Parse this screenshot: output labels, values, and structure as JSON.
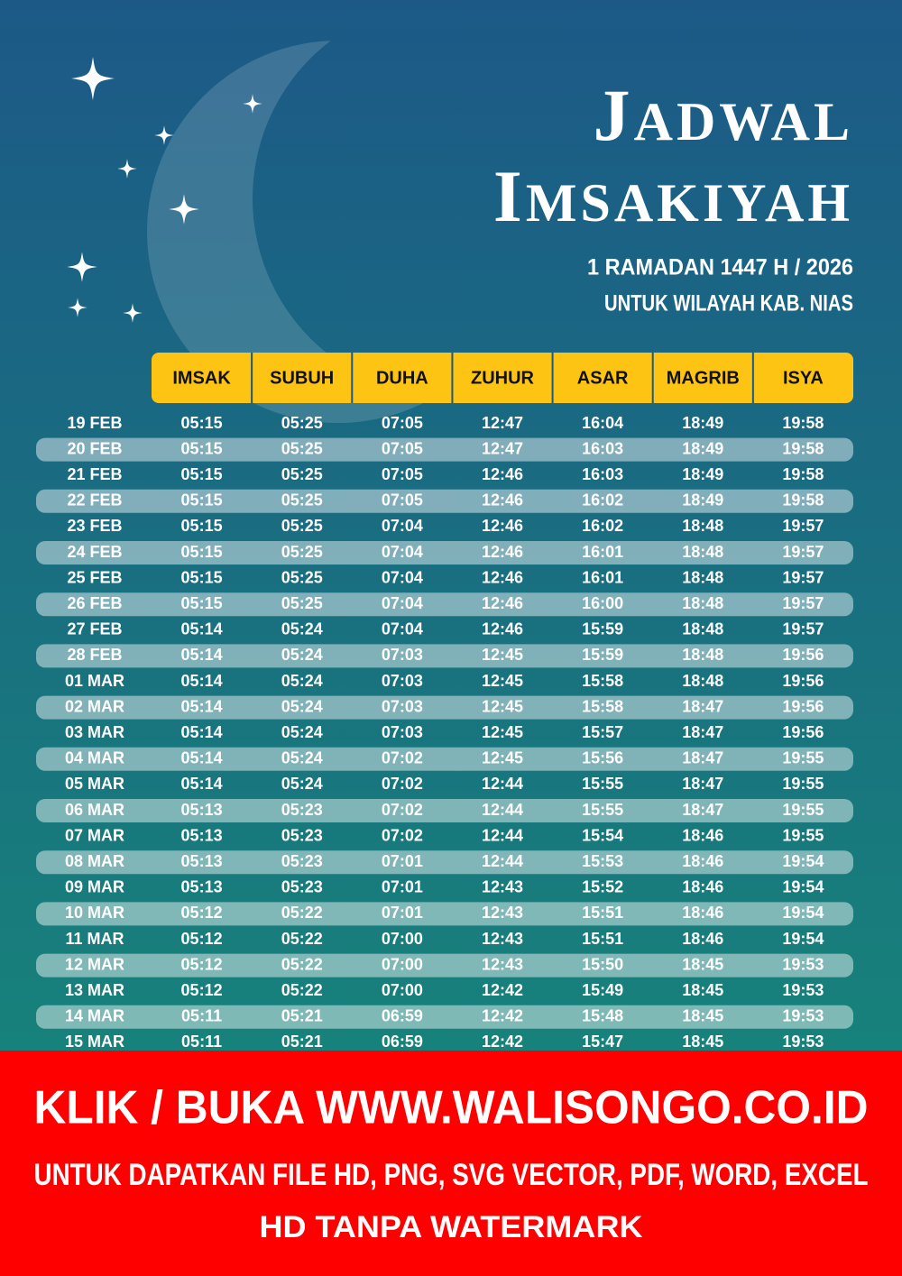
{
  "header": {
    "title_lines": [
      "JADWAL",
      "IMSAKIYAH"
    ],
    "subtitle_lines": [
      "1 RAMADAN 1447 H / 2026",
      "UNTUK WILAYAH KAB. NIAS"
    ]
  },
  "table": {
    "columns": [
      "IMSAK",
      "SUBUH",
      "DUHA",
      "ZUHUR",
      "ASAR",
      "MAGRIB",
      "ISYA"
    ],
    "rows": [
      [
        "19 FEB",
        "05:15",
        "05:25",
        "07:05",
        "12:47",
        "16:04",
        "18:49",
        "19:58"
      ],
      [
        "20 FEB",
        "05:15",
        "05:25",
        "07:05",
        "12:47",
        "16:03",
        "18:49",
        "19:58"
      ],
      [
        "21 FEB",
        "05:15",
        "05:25",
        "07:05",
        "12:46",
        "16:03",
        "18:49",
        "19:58"
      ],
      [
        "22 FEB",
        "05:15",
        "05:25",
        "07:05",
        "12:46",
        "16:02",
        "18:49",
        "19:58"
      ],
      [
        "23 FEB",
        "05:15",
        "05:25",
        "07:04",
        "12:46",
        "16:02",
        "18:48",
        "19:57"
      ],
      [
        "24 FEB",
        "05:15",
        "05:25",
        "07:04",
        "12:46",
        "16:01",
        "18:48",
        "19:57"
      ],
      [
        "25 FEB",
        "05:15",
        "05:25",
        "07:04",
        "12:46",
        "16:01",
        "18:48",
        "19:57"
      ],
      [
        "26 FEB",
        "05:15",
        "05:25",
        "07:04",
        "12:46",
        "16:00",
        "18:48",
        "19:57"
      ],
      [
        "27 FEB",
        "05:14",
        "05:24",
        "07:04",
        "12:46",
        "15:59",
        "18:48",
        "19:57"
      ],
      [
        "28 FEB",
        "05:14",
        "05:24",
        "07:03",
        "12:45",
        "15:59",
        "18:48",
        "19:56"
      ],
      [
        "01 MAR",
        "05:14",
        "05:24",
        "07:03",
        "12:45",
        "15:58",
        "18:48",
        "19:56"
      ],
      [
        "02 MAR",
        "05:14",
        "05:24",
        "07:03",
        "12:45",
        "15:58",
        "18:47",
        "19:56"
      ],
      [
        "03 MAR",
        "05:14",
        "05:24",
        "07:03",
        "12:45",
        "15:57",
        "18:47",
        "19:56"
      ],
      [
        "04 MAR",
        "05:14",
        "05:24",
        "07:02",
        "12:45",
        "15:56",
        "18:47",
        "19:55"
      ],
      [
        "05 MAR",
        "05:14",
        "05:24",
        "07:02",
        "12:44",
        "15:55",
        "18:47",
        "19:55"
      ],
      [
        "06 MAR",
        "05:13",
        "05:23",
        "07:02",
        "12:44",
        "15:55",
        "18:47",
        "19:55"
      ],
      [
        "07 MAR",
        "05:13",
        "05:23",
        "07:02",
        "12:44",
        "15:54",
        "18:46",
        "19:55"
      ],
      [
        "08 MAR",
        "05:13",
        "05:23",
        "07:01",
        "12:44",
        "15:53",
        "18:46",
        "19:54"
      ],
      [
        "09 MAR",
        "05:13",
        "05:23",
        "07:01",
        "12:43",
        "15:52",
        "18:46",
        "19:54"
      ],
      [
        "10 MAR",
        "05:12",
        "05:22",
        "07:01",
        "12:43",
        "15:51",
        "18:46",
        "19:54"
      ],
      [
        "11 MAR",
        "05:12",
        "05:22",
        "07:00",
        "12:43",
        "15:51",
        "18:46",
        "19:54"
      ],
      [
        "12 MAR",
        "05:12",
        "05:22",
        "07:00",
        "12:43",
        "15:50",
        "18:45",
        "19:53"
      ],
      [
        "13 MAR",
        "05:12",
        "05:22",
        "07:00",
        "12:42",
        "15:49",
        "18:45",
        "19:53"
      ],
      [
        "14 MAR",
        "05:11",
        "05:21",
        "06:59",
        "12:42",
        "15:48",
        "18:45",
        "19:53"
      ],
      [
        "15 MAR",
        "05:11",
        "05:21",
        "06:59",
        "12:42",
        "15:47",
        "18:45",
        "19:53"
      ]
    ]
  },
  "banner": {
    "lines": [
      "KLIK / BUKA WWW.WALISONGO.CO.ID",
      "UNTUK DAPATKAN FILE HD, PNG, SVG VECTOR, PDF, WORD, EXCEL",
      "HD TANPA WATERMARK"
    ]
  }
}
